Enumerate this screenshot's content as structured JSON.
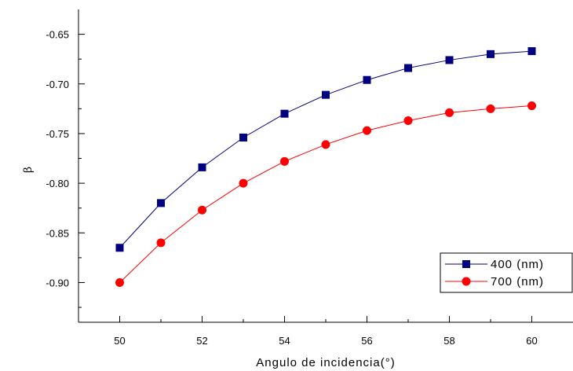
{
  "chart_data": {
    "type": "line",
    "title": "",
    "xlabel": "Angulo de incidencia(°)",
    "ylabel": "β",
    "x": [
      50,
      51,
      52,
      53,
      54,
      55,
      56,
      57,
      58,
      59,
      60
    ],
    "xlim": [
      49,
      61
    ],
    "ylim": [
      -0.94,
      -0.625
    ],
    "xticks": [
      50,
      52,
      54,
      56,
      58,
      60
    ],
    "yticks": [
      -0.9,
      -0.85,
      -0.8,
      -0.75,
      -0.7,
      -0.65
    ],
    "xtick_labels": [
      "50",
      "52",
      "54",
      "56",
      "58",
      "60"
    ],
    "ytick_labels": [
      "-0.90",
      "-0.85",
      "-0.80",
      "-0.75",
      "-0.70",
      "-0.65"
    ],
    "grid": false,
    "legend_position": "bottom-right",
    "series": [
      {
        "name": "400 (nm)",
        "color": "#000080",
        "marker": "square",
        "values": [
          -0.865,
          -0.82,
          -0.784,
          -0.754,
          -0.73,
          -0.711,
          -0.696,
          -0.684,
          -0.676,
          -0.67,
          -0.667
        ]
      },
      {
        "name": "700 (nm)",
        "color": "#ff0000",
        "marker": "circle",
        "values": [
          -0.9,
          -0.86,
          -0.827,
          -0.8,
          -0.778,
          -0.761,
          -0.747,
          -0.737,
          -0.729,
          -0.725,
          -0.722
        ]
      }
    ]
  }
}
